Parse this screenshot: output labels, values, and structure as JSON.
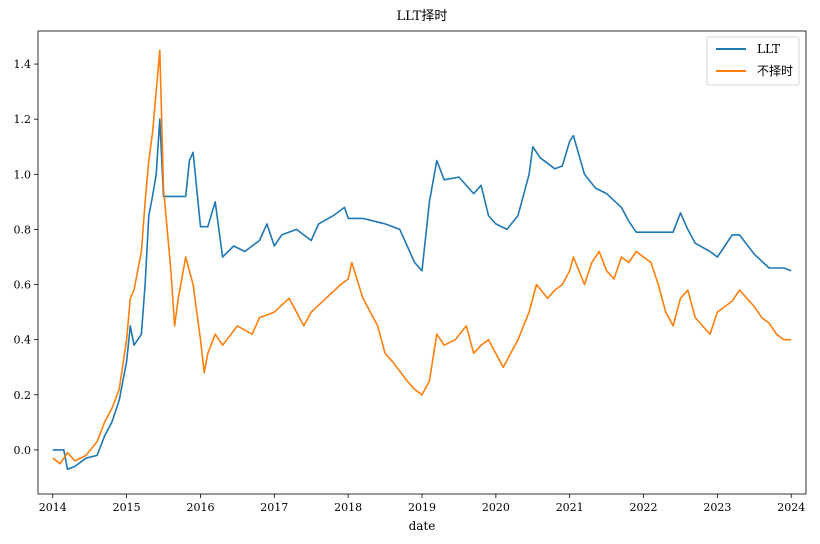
{
  "chart_data": {
    "type": "line",
    "title": "LLT择时",
    "xlabel": "date",
    "ylabel": "",
    "xlim": [
      2013.8,
      2024.2
    ],
    "ylim": [
      -0.16,
      1.52
    ],
    "x_ticks": [
      "2014",
      "2015",
      "2016",
      "2017",
      "2018",
      "2019",
      "2020",
      "2021",
      "2022",
      "2023",
      "2024"
    ],
    "y_ticks": [
      "0.0",
      "0.2",
      "0.4",
      "0.6",
      "0.8",
      "1.0",
      "1.2",
      "1.4"
    ],
    "legend_position": "top-right",
    "grid": false,
    "series": [
      {
        "name": "LLT",
        "color": "#1f77b4",
        "x": [
          2014.0,
          2014.15,
          2014.2,
          2014.3,
          2014.45,
          2014.6,
          2014.7,
          2014.8,
          2014.9,
          2015.0,
          2015.05,
          2015.1,
          2015.2,
          2015.25,
          2015.3,
          2015.35,
          2015.4,
          2015.45,
          2015.5,
          2015.55,
          2015.8,
          2015.85,
          2015.9,
          2016.0,
          2016.1,
          2016.2,
          2016.3,
          2016.45,
          2016.6,
          2016.8,
          2016.9,
          2017.0,
          2017.1,
          2017.3,
          2017.5,
          2017.6,
          2017.8,
          2017.95,
          2018.0,
          2018.2,
          2018.5,
          2018.7,
          2018.9,
          2019.0,
          2019.1,
          2019.2,
          2019.3,
          2019.5,
          2019.7,
          2019.8,
          2019.9,
          2020.0,
          2020.15,
          2020.3,
          2020.45,
          2020.5,
          2020.6,
          2020.8,
          2020.9,
          2021.0,
          2021.05,
          2021.2,
          2021.35,
          2021.5,
          2021.7,
          2021.8,
          2021.9,
          2022.0,
          2022.2,
          2022.4,
          2022.5,
          2022.6,
          2022.7,
          2022.9,
          2023.0,
          2023.1,
          2023.2,
          2023.3,
          2023.5,
          2023.7,
          2023.9,
          2024.0
        ],
        "values": [
          0.0,
          0.0,
          -0.07,
          -0.06,
          -0.03,
          -0.02,
          0.05,
          0.1,
          0.18,
          0.32,
          0.45,
          0.38,
          0.42,
          0.6,
          0.85,
          0.92,
          1.0,
          1.2,
          0.92,
          0.92,
          0.92,
          1.05,
          1.08,
          0.81,
          0.81,
          0.9,
          0.7,
          0.74,
          0.72,
          0.76,
          0.82,
          0.74,
          0.78,
          0.8,
          0.76,
          0.82,
          0.85,
          0.88,
          0.84,
          0.84,
          0.82,
          0.8,
          0.68,
          0.65,
          0.9,
          1.05,
          0.98,
          0.99,
          0.93,
          0.96,
          0.85,
          0.82,
          0.8,
          0.85,
          1.0,
          1.1,
          1.06,
          1.02,
          1.03,
          1.12,
          1.14,
          1.0,
          0.95,
          0.93,
          0.88,
          0.83,
          0.79,
          0.79,
          0.79,
          0.79,
          0.86,
          0.8,
          0.75,
          0.72,
          0.7,
          0.74,
          0.78,
          0.78,
          0.71,
          0.66,
          0.66,
          0.65
        ]
      },
      {
        "name": "不择时",
        "color": "#ff7f0e",
        "x": [
          2014.0,
          2014.1,
          2014.2,
          2014.3,
          2014.45,
          2014.6,
          2014.7,
          2014.8,
          2014.9,
          2015.0,
          2015.05,
          2015.1,
          2015.2,
          2015.25,
          2015.3,
          2015.35,
          2015.4,
          2015.45,
          2015.5,
          2015.55,
          2015.6,
          2015.65,
          2015.7,
          2015.8,
          2015.85,
          2015.9,
          2016.0,
          2016.05,
          2016.1,
          2016.2,
          2016.3,
          2016.5,
          2016.7,
          2016.8,
          2017.0,
          2017.2,
          2017.3,
          2017.4,
          2017.5,
          2017.7,
          2017.9,
          2018.0,
          2018.05,
          2018.2,
          2018.4,
          2018.5,
          2018.6,
          2018.8,
          2018.9,
          2019.0,
          2019.1,
          2019.2,
          2019.3,
          2019.45,
          2019.6,
          2019.7,
          2019.8,
          2019.9,
          2020.0,
          2020.1,
          2020.2,
          2020.3,
          2020.45,
          2020.55,
          2020.7,
          2020.8,
          2020.9,
          2021.0,
          2021.05,
          2021.2,
          2021.3,
          2021.4,
          2021.5,
          2021.6,
          2021.7,
          2021.8,
          2021.9,
          2022.0,
          2022.1,
          2022.2,
          2022.3,
          2022.4,
          2022.5,
          2022.6,
          2022.7,
          2022.8,
          2022.9,
          2023.0,
          2023.1,
          2023.2,
          2023.3,
          2023.4,
          2023.5,
          2023.6,
          2023.7,
          2023.8,
          2023.9,
          2024.0
        ],
        "values": [
          -0.03,
          -0.05,
          -0.01,
          -0.04,
          -0.02,
          0.03,
          0.1,
          0.15,
          0.22,
          0.4,
          0.55,
          0.58,
          0.72,
          0.9,
          1.05,
          1.15,
          1.3,
          1.45,
          0.95,
          0.8,
          0.65,
          0.45,
          0.55,
          0.7,
          0.65,
          0.6,
          0.4,
          0.28,
          0.35,
          0.42,
          0.38,
          0.45,
          0.42,
          0.48,
          0.5,
          0.55,
          0.5,
          0.45,
          0.5,
          0.55,
          0.6,
          0.62,
          0.68,
          0.55,
          0.45,
          0.35,
          0.32,
          0.25,
          0.22,
          0.2,
          0.25,
          0.42,
          0.38,
          0.4,
          0.45,
          0.35,
          0.38,
          0.4,
          0.35,
          0.3,
          0.35,
          0.4,
          0.5,
          0.6,
          0.55,
          0.58,
          0.6,
          0.65,
          0.7,
          0.6,
          0.68,
          0.72,
          0.65,
          0.62,
          0.7,
          0.68,
          0.72,
          0.7,
          0.68,
          0.6,
          0.5,
          0.45,
          0.55,
          0.58,
          0.48,
          0.45,
          0.42,
          0.5,
          0.52,
          0.54,
          0.58,
          0.55,
          0.52,
          0.48,
          0.46,
          0.42,
          0.4,
          0.4
        ]
      }
    ]
  }
}
